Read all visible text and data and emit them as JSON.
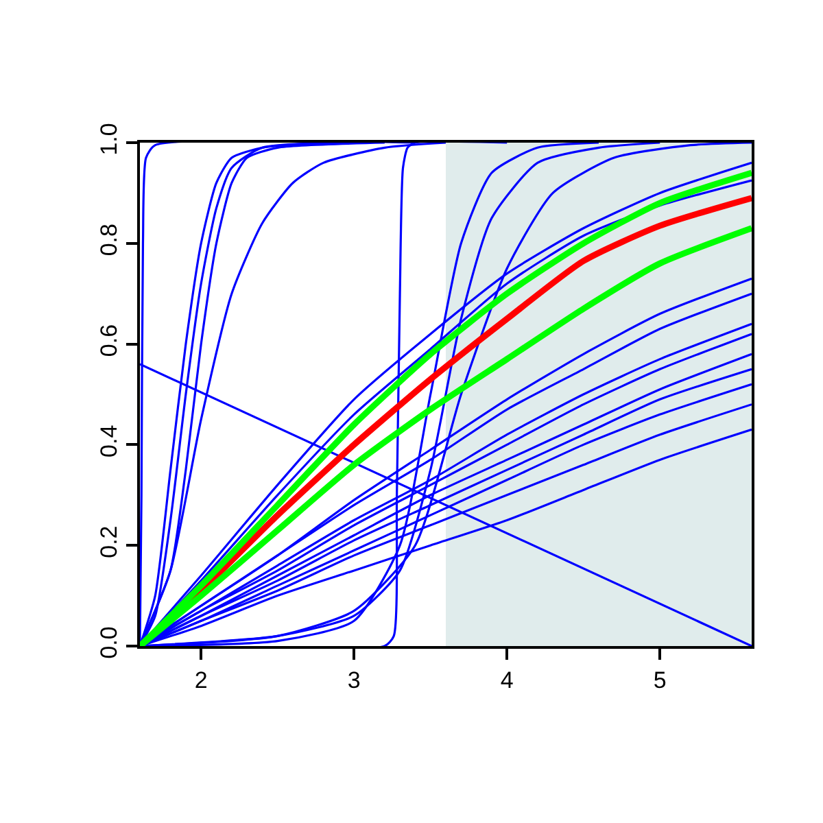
{
  "chart_data": {
    "type": "line",
    "xlim": [
      1.6,
      5.6
    ],
    "xticks": [
      2,
      3,
      4,
      5
    ],
    "ylim": [
      0,
      1
    ],
    "yticks": [
      {
        "value": 0,
        "label": "0.0"
      },
      {
        "value": 0.2,
        "label": "0.2"
      },
      {
        "value": 0.4,
        "label": "0.4"
      },
      {
        "value": 0.6,
        "label": "0.6"
      },
      {
        "value": 0.8,
        "label": "0.8"
      },
      {
        "value": 1,
        "label": "1.0"
      }
    ],
    "grid": false,
    "marker": "none",
    "line_style": "solid",
    "bands": [
      {
        "axis": "x",
        "from": 3.6,
        "to": 5.6,
        "color": "#e0ecec"
      }
    ],
    "series": [
      {
        "color": "#0000ff",
        "x": [
          1.6,
          2.0,
          2.5,
          3.0,
          3.5,
          4.0,
          4.5,
          5.0,
          5.6
        ],
        "values": [
          0,
          0.14,
          0.32,
          0.49,
          0.62,
          0.74,
          0.83,
          0.9,
          0.96
        ]
      },
      {
        "color": "#0000ff",
        "x": [
          1.6,
          2.0,
          2.5,
          3.0,
          3.5,
          4.0,
          4.5,
          5.0,
          5.6
        ],
        "values": [
          0,
          0.13,
          0.3,
          0.46,
          0.59,
          0.72,
          0.815,
          0.875,
          0.925
        ]
      },
      {
        "color": "#0000ff",
        "x": [
          1.6,
          2.0,
          2.5,
          3.0,
          3.5,
          4.0,
          4.5,
          5.0,
          5.6
        ],
        "values": [
          0,
          0.08,
          0.18,
          0.29,
          0.39,
          0.49,
          0.58,
          0.66,
          0.73
        ]
      },
      {
        "color": "#0000ff",
        "x": [
          1.6,
          2.0,
          2.5,
          3.0,
          3.5,
          4.0,
          4.5,
          5.0,
          5.6
        ],
        "values": [
          0,
          0.08,
          0.18,
          0.28,
          0.37,
          0.47,
          0.55,
          0.63,
          0.7
        ]
      },
      {
        "color": "#0000ff",
        "x": [
          1.6,
          2.0,
          2.5,
          3.0,
          3.5,
          4.0,
          4.5,
          5.0,
          5.6
        ],
        "values": [
          0,
          0.07,
          0.16,
          0.25,
          0.33,
          0.42,
          0.5,
          0.57,
          0.64
        ]
      },
      {
        "color": "#0000ff",
        "x": [
          1.6,
          2.0,
          2.5,
          3.0,
          3.5,
          4.0,
          4.5,
          5.0,
          5.6
        ],
        "values": [
          0,
          0.07,
          0.15,
          0.24,
          0.32,
          0.4,
          0.48,
          0.55,
          0.62
        ]
      },
      {
        "color": "#0000ff",
        "x": [
          1.6,
          2.0,
          2.5,
          3.0,
          3.5,
          4.0,
          4.5,
          5.0,
          5.6
        ],
        "values": [
          0,
          0.06,
          0.14,
          0.22,
          0.3,
          0.37,
          0.44,
          0.51,
          0.58
        ]
      },
      {
        "color": "#0000ff",
        "x": [
          1.6,
          2.0,
          2.5,
          3.0,
          3.5,
          4.0,
          4.5,
          5.0,
          5.6
        ],
        "values": [
          0,
          0.06,
          0.13,
          0.21,
          0.28,
          0.35,
          0.42,
          0.49,
          0.55
        ]
      },
      {
        "color": "#0000ff",
        "x": [
          1.6,
          2.0,
          2.5,
          3.0,
          3.5,
          4.0,
          4.5,
          5.0,
          5.6
        ],
        "values": [
          0,
          0.05,
          0.12,
          0.19,
          0.26,
          0.33,
          0.4,
          0.46,
          0.52
        ]
      },
      {
        "color": "#0000ff",
        "x": [
          1.6,
          2.0,
          2.5,
          3.0,
          3.5,
          4.0,
          4.5,
          5.0,
          5.6
        ],
        "values": [
          0,
          0.05,
          0.11,
          0.18,
          0.24,
          0.3,
          0.36,
          0.42,
          0.48
        ]
      },
      {
        "color": "#0000ff",
        "x": [
          1.6,
          2.0,
          2.5,
          3.0,
          3.5,
          4.0,
          4.5,
          5.0,
          5.6
        ],
        "values": [
          0,
          0.04,
          0.1,
          0.15,
          0.2,
          0.25,
          0.31,
          0.37,
          0.43
        ]
      },
      {
        "color": "#0000ff",
        "x": [
          1.6,
          1.61,
          1.62,
          1.64,
          1.7,
          3.4
        ],
        "values": [
          0,
          0.3,
          0.8,
          0.97,
          0.995,
          1.0
        ]
      },
      {
        "color": "#0000ff",
        "x": [
          1.6,
          1.7,
          1.8,
          1.9,
          2.0,
          2.1,
          2.2,
          2.4,
          2.8
        ],
        "values": [
          0,
          0.1,
          0.35,
          0.6,
          0.8,
          0.92,
          0.97,
          0.99,
          1.0
        ]
      },
      {
        "color": "#0000ff",
        "x": [
          1.6,
          1.7,
          1.8,
          1.9,
          2.0,
          2.1,
          2.2,
          2.4,
          3.0
        ],
        "values": [
          0,
          0.06,
          0.25,
          0.5,
          0.72,
          0.87,
          0.95,
          0.99,
          1.0
        ]
      },
      {
        "color": "#0000ff",
        "x": [
          1.6,
          1.8,
          1.9,
          2.0,
          2.1,
          2.2,
          2.3,
          2.5,
          3.2
        ],
        "values": [
          0,
          0.15,
          0.35,
          0.6,
          0.8,
          0.92,
          0.97,
          0.99,
          1.0
        ]
      },
      {
        "color": "#0000ff",
        "x": [
          1.6,
          1.8,
          2.0,
          2.2,
          2.4,
          2.6,
          2.8,
          3.2,
          3.6
        ],
        "values": [
          0,
          0.15,
          0.45,
          0.7,
          0.84,
          0.92,
          0.96,
          0.99,
          1.0
        ]
      },
      {
        "color": "#0000ff",
        "x": [
          1.6,
          3.2,
          3.26,
          3.28,
          3.3,
          3.32,
          3.35,
          3.4,
          4.0
        ],
        "values": [
          0,
          0,
          0.02,
          0.3,
          0.7,
          0.95,
          0.99,
          1.0,
          1.0
        ]
      },
      {
        "color": "#0000ff",
        "x": [
          1.6,
          2.5,
          3.0,
          3.3,
          3.5,
          3.7,
          3.9,
          4.2,
          4.6
        ],
        "values": [
          0,
          0.01,
          0.05,
          0.2,
          0.5,
          0.8,
          0.94,
          0.99,
          1.0
        ]
      },
      {
        "color": "#0000ff",
        "x": [
          1.6,
          2.5,
          3.0,
          3.3,
          3.5,
          3.7,
          3.9,
          4.2,
          4.6,
          5.0
        ],
        "values": [
          0,
          0.02,
          0.06,
          0.15,
          0.35,
          0.65,
          0.85,
          0.96,
          0.99,
          1.0
        ]
      },
      {
        "color": "#0000ff",
        "x": [
          1.6,
          2.5,
          3.0,
          3.4,
          3.7,
          4.0,
          4.3,
          4.7,
          5.2,
          5.6
        ],
        "values": [
          0,
          0.02,
          0.07,
          0.2,
          0.5,
          0.75,
          0.9,
          0.97,
          0.995,
          1.0
        ]
      },
      {
        "color": "#0000ff",
        "x": [
          1.6,
          5.6
        ],
        "values": [
          0.56,
          0
        ]
      },
      {
        "color": "#ff0000",
        "x": [
          1.6,
          2.0,
          2.5,
          3.0,
          3.5,
          4.0,
          4.5,
          5.0,
          5.6
        ],
        "values": [
          0,
          0.11,
          0.26,
          0.4,
          0.53,
          0.65,
          0.765,
          0.835,
          0.89
        ]
      },
      {
        "color": "#00ff00",
        "x": [
          1.6,
          2.0,
          2.5,
          3.0,
          3.5,
          4.0,
          4.5,
          5.0,
          5.6
        ],
        "values": [
          0,
          0.12,
          0.28,
          0.44,
          0.58,
          0.7,
          0.8,
          0.88,
          0.94
        ]
      },
      {
        "color": "#00ff00",
        "x": [
          1.6,
          2.0,
          2.5,
          3.0,
          3.5,
          4.0,
          4.5,
          5.0,
          5.6
        ],
        "values": [
          0,
          0.1,
          0.23,
          0.36,
          0.47,
          0.57,
          0.67,
          0.76,
          0.83
        ]
      }
    ]
  }
}
